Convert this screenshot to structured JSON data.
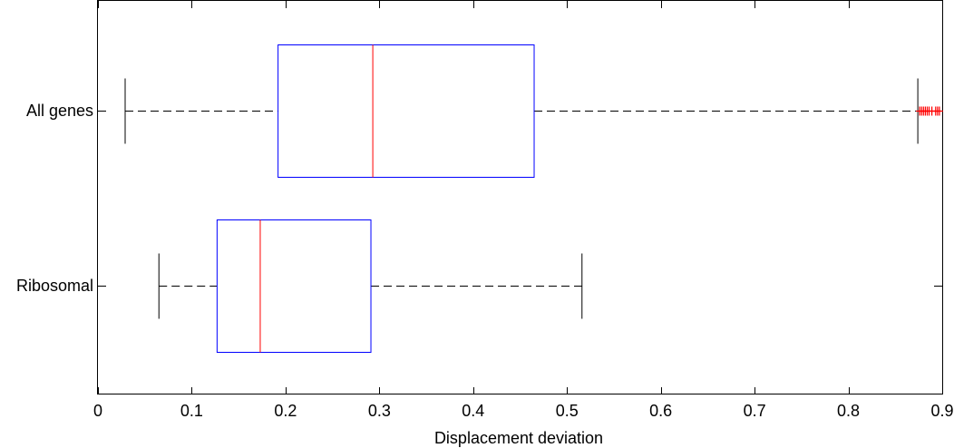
{
  "chart_data": {
    "type": "boxplot",
    "orientation": "horizontal",
    "title": "",
    "xlabel": "Displacement deviation",
    "ylabel": "",
    "xlim": [
      0,
      0.9
    ],
    "xticks": [
      0,
      0.1,
      0.2,
      0.3,
      0.4,
      0.5,
      0.6,
      0.7,
      0.8,
      0.9
    ],
    "xtick_labels": [
      "0",
      "0.1",
      "0.2",
      "0.3",
      "0.4",
      "0.5",
      "0.6",
      "0.7",
      "0.8",
      "0.9"
    ],
    "grid": false,
    "categories": [
      "All genes",
      "Ribosomal"
    ],
    "boxes": [
      {
        "label": "All genes",
        "whisker_low": 0.029,
        "q1": 0.192,
        "median": 0.293,
        "q3": 0.465,
        "whisker_high": 0.874,
        "outliers": [
          0.876,
          0.878,
          0.88,
          0.882,
          0.884,
          0.886,
          0.889,
          0.893,
          0.895,
          0.897
        ]
      },
      {
        "label": "Ribosomal",
        "whisker_low": 0.065,
        "q1": 0.127,
        "median": 0.173,
        "q3": 0.291,
        "whisker_high": 0.516,
        "outliers": []
      }
    ],
    "colors": {
      "box": "#0000ff",
      "median": "#ff0000",
      "whisker": "#000000",
      "outlier": "#ff0000",
      "axes": "#000000"
    }
  }
}
